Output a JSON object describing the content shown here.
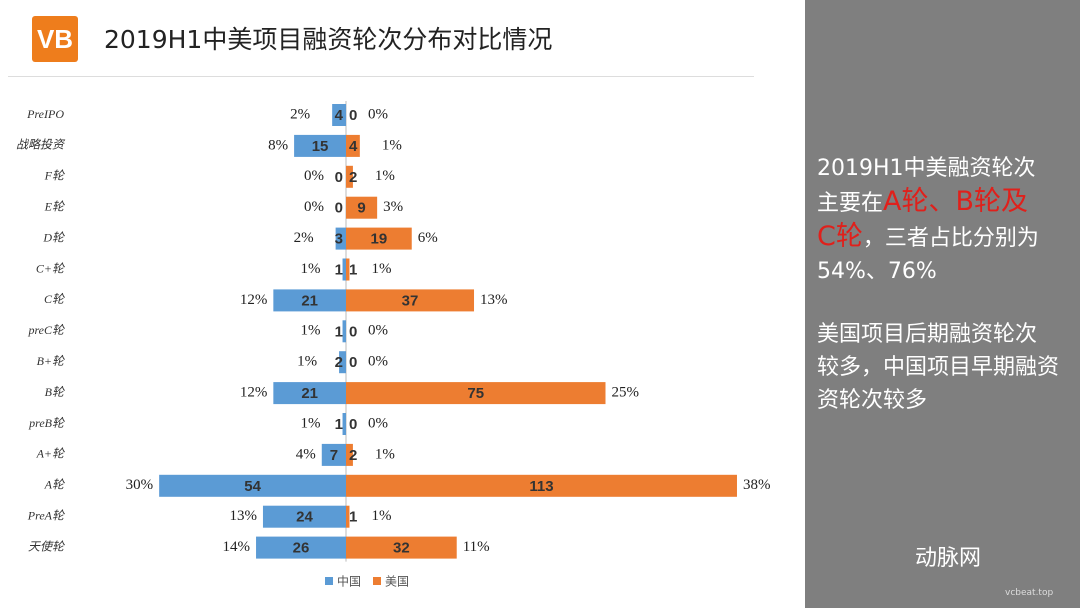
{
  "header": {
    "logo": "VB",
    "title": "2019H1中美项目融资轮次分布对比情况"
  },
  "chart_data": {
    "type": "butterfly",
    "categories": [
      "PreIPO",
      "战略投资",
      "F轮",
      "E轮",
      "D轮",
      "C+轮",
      "C轮",
      "preC轮",
      "B+轮",
      "B轮",
      "preB轮",
      "A+轮",
      "A轮",
      "PreA轮",
      "天使轮"
    ],
    "series": [
      {
        "name": "中国",
        "color": "#5b9bd5",
        "values": [
          4,
          15,
          0,
          0,
          3,
          1,
          21,
          1,
          2,
          21,
          1,
          7,
          54,
          24,
          26
        ],
        "share_labels": [
          "2%",
          "8%",
          "0%",
          "0%",
          "2%",
          "1%",
          "12%",
          "1%",
          "1%",
          "12%",
          "1%",
          "4%",
          "30%",
          "13%",
          "14%"
        ]
      },
      {
        "name": "美国",
        "color": "#ed7d31",
        "values": [
          0,
          4,
          2,
          9,
          19,
          1,
          37,
          0,
          0,
          75,
          0,
          2,
          113,
          1,
          32
        ],
        "share_labels": [
          "0%",
          "1%",
          "1%",
          "3%",
          "6%",
          "1%",
          "13%",
          "0%",
          "0%",
          "25%",
          "0%",
          "1%",
          "38%",
          "1%",
          "11%"
        ]
      }
    ]
  },
  "side_panel": {
    "paragraph1": [
      [
        {
          "text": "2019H1中美融资轮次"
        }
      ],
      [
        {
          "text": "主要在"
        },
        {
          "text": "A轮、B轮及",
          "highlight": true
        }
      ],
      [
        {
          "text": "C轮",
          "highlight": true
        },
        {
          "text": "，三者占比分别为"
        }
      ],
      [
        {
          "text": "54%、76%"
        }
      ]
    ],
    "paragraph2": [
      [
        {
          "text": "美国项目后期融资轮次"
        }
      ],
      [
        {
          "text": "较多，中国项目早期融资"
        }
      ],
      [
        {
          "text": "资轮次较多"
        }
      ]
    ]
  },
  "watermark": {
    "name": "动脉网",
    "site": "vcbeat.top"
  }
}
